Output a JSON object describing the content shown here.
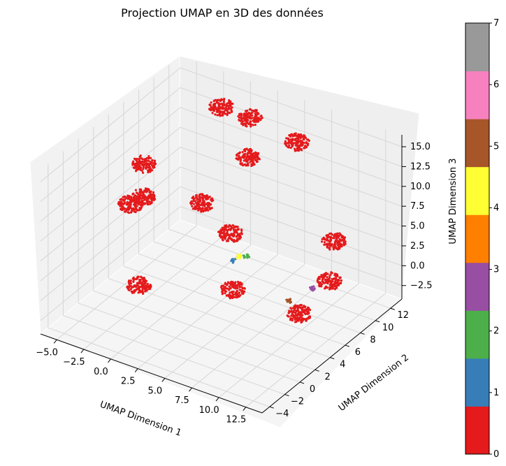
{
  "chart_data": {
    "type": "scatter",
    "title": "Projection UMAP en 3D des données",
    "xlabel": "UMAP Dimension 1",
    "ylabel": "UMAP Dimension 2",
    "zlabel": "UMAP Dimension 3",
    "xlim": [
      -6.5,
      14.0
    ],
    "ylim": [
      -5.0,
      13.5
    ],
    "zlim": [
      -4.2,
      16.5
    ],
    "x_ticks": [
      "−5.0",
      "−2.5",
      "0.0",
      "2.5",
      "5.0",
      "7.5",
      "10.0",
      "12.5"
    ],
    "x_tick_values": [
      -5.0,
      -2.5,
      0.0,
      2.5,
      5.0,
      7.5,
      10.0,
      12.5
    ],
    "y_ticks": [
      "−4",
      "−2",
      "0",
      "2",
      "4",
      "6",
      "8",
      "10",
      "12"
    ],
    "y_tick_values": [
      -4,
      -2,
      0,
      2,
      4,
      6,
      8,
      10,
      12
    ],
    "z_ticks": [
      "−2.5",
      "0.0",
      "2.5",
      "5.0",
      "7.5",
      "10.0",
      "12.5",
      "15.0"
    ],
    "z_tick_values": [
      -2.5,
      0.0,
      2.5,
      5.0,
      7.5,
      10.0,
      12.5,
      15.0
    ],
    "grid": true,
    "colormap": "Set1",
    "colorbar": {
      "min": 0,
      "max": 7,
      "ticks": [
        "0",
        "1",
        "2",
        "3",
        "4",
        "5",
        "6",
        "7"
      ],
      "colors": [
        "#e41a1c",
        "#377eb8",
        "#4daf4a",
        "#984ea3",
        "#ff7f00",
        "#ffff33",
        "#a65628",
        "#f781bf",
        "#999999"
      ]
    },
    "clusters": [
      {
        "label": 0,
        "x": -2.0,
        "y": 12.5,
        "z": 13.0
      },
      {
        "label": 0,
        "x": 1.0,
        "y": 12.0,
        "z": 13.5
      },
      {
        "label": 0,
        "x": 5.0,
        "y": 12.5,
        "z": 12.0
      },
      {
        "label": 0,
        "x": 1.5,
        "y": 11.0,
        "z": 9.5
      },
      {
        "label": 0,
        "x": -5.0,
        "y": 6.5,
        "z": 9.0
      },
      {
        "label": 0,
        "x": -1.0,
        "y": 8.5,
        "z": 4.5
      },
      {
        "label": 0,
        "x": -4.0,
        "y": 5.0,
        "z": 6.5
      },
      {
        "label": 0,
        "x": -5.5,
        "y": 5.5,
        "z": 4.5
      },
      {
        "label": 0,
        "x": 2.0,
        "y": 8.0,
        "z": 2.5
      },
      {
        "label": 0,
        "x": 5.0,
        "y": 4.0,
        "z": 0.0
      },
      {
        "label": 0,
        "x": 10.5,
        "y": 9.5,
        "z": 4.5
      },
      {
        "label": 0,
        "x": 11.5,
        "y": 7.5,
        "z": 1.5
      },
      {
        "label": 0,
        "x": 11.5,
        "y": 3.5,
        "z": 0.5
      },
      {
        "label": 0,
        "x": 0.5,
        "y": -2.0,
        "z": 3.0
      },
      {
        "label": 1,
        "x": 4.0,
        "y": 5.5,
        "z": 2.0
      },
      {
        "label": 2,
        "x": 4.5,
        "y": 6.5,
        "z": 2.0
      },
      {
        "label": 3,
        "x": 11.0,
        "y": 6.0,
        "z": 1.5
      },
      {
        "label": 4,
        "x": 4.2,
        "y": 6.0,
        "z": 2.2
      },
      {
        "label": 5,
        "x": 9.5,
        "y": 5.0,
        "z": 0.0
      }
    ]
  }
}
